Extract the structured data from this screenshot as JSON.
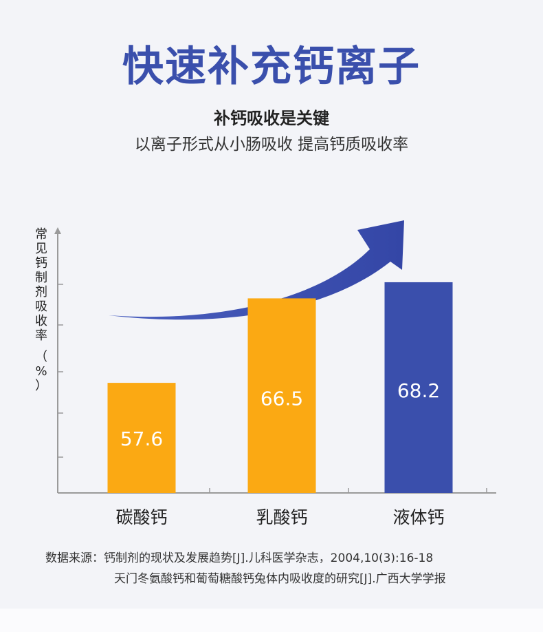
{
  "title": "快速补充钙离子",
  "subtitle": "补钙吸收是关键",
  "description": "以离子形式从小肠吸收 提高钙质吸收率",
  "colors": {
    "title": "#3a4fac",
    "bar_orange": "#fba913",
    "bar_blue": "#3a4fac",
    "arrow": "#3a4fac",
    "axis": "#9a9a9a"
  },
  "chart_data": {
    "type": "bar",
    "ylabel": "常见钙制剂吸收率",
    "yunit": "（%）",
    "categories": [
      "碳酸钙",
      "乳酸钙",
      "液体钙"
    ],
    "values": [
      57.6,
      66.5,
      68.2
    ],
    "value_labels": [
      "57.6",
      "66.5",
      "68.2"
    ],
    "bar_colors": [
      "#fba913",
      "#fba913",
      "#3a4fac"
    ],
    "ylim": [
      46,
      74
    ],
    "grid": false,
    "trend_arrow": "up-right"
  },
  "source": {
    "label": "数据来源：",
    "line1": "钙制剂的现状及发展趋势[J].儿科医学杂志，2004,10(3):16-18",
    "line2": "天门冬氨酸钙和葡萄糖酸钙兔体内吸收度的研究[J].广西大学学报"
  }
}
